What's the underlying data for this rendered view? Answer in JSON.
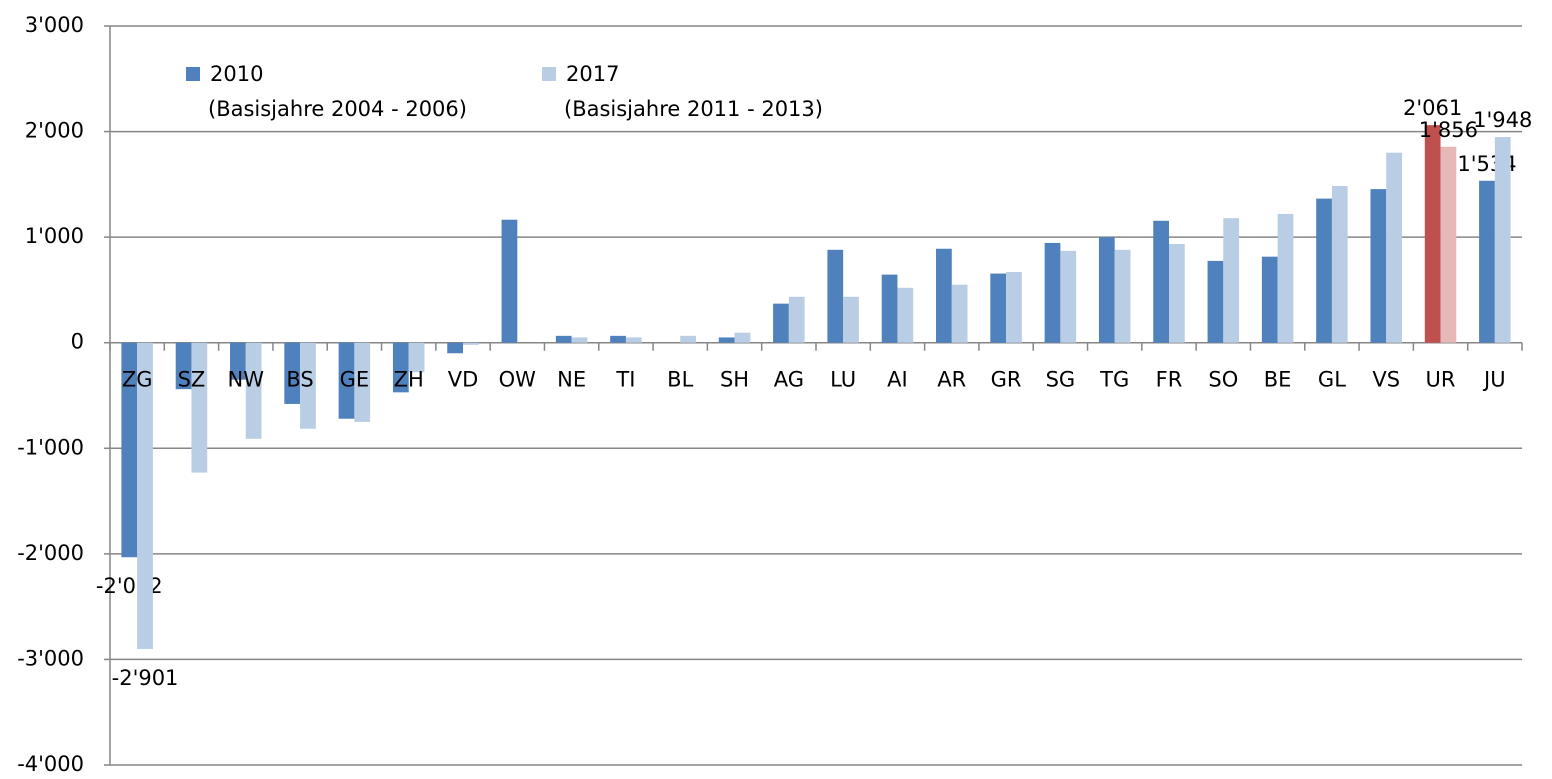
{
  "chart_data": {
    "type": "bar",
    "categories": [
      "ZG",
      "SZ",
      "NW",
      "BS",
      "GE",
      "ZH",
      "VD",
      "OW",
      "NE",
      "TI",
      "BL",
      "SH",
      "AG",
      "LU",
      "AI",
      "AR",
      "GR",
      "SG",
      "TG",
      "FR",
      "SO",
      "BE",
      "GL",
      "VS",
      "UR",
      "JU"
    ],
    "highlight": "UR",
    "series": [
      {
        "name": "2010",
        "description": "(Basisjahre 2004 - 2006)",
        "color": "#4f81bd",
        "highlight_color": "#c0504d",
        "values": [
          -2032,
          -440,
          -350,
          -580,
          -720,
          -470,
          -100,
          1165,
          65,
          65,
          0,
          50,
          370,
          880,
          645,
          890,
          655,
          945,
          1000,
          1155,
          775,
          815,
          1365,
          1455,
          2061,
          1534
        ],
        "value_labels": [
          "-2'032",
          null,
          null,
          null,
          null,
          null,
          null,
          null,
          null,
          null,
          null,
          null,
          null,
          null,
          null,
          null,
          null,
          null,
          null,
          null,
          null,
          null,
          null,
          null,
          "2'061",
          "1'534"
        ]
      },
      {
        "name": "2017",
        "description": "(Basisjahre 2011 - 2013)",
        "color": "#b9cde5",
        "highlight_color": "#e6b9b8",
        "values": [
          -2901,
          -1230,
          -910,
          -815,
          -750,
          -280,
          -20,
          0,
          50,
          50,
          65,
          95,
          435,
          435,
          520,
          550,
          670,
          870,
          880,
          935,
          1180,
          1220,
          1485,
          1800,
          1856,
          1948
        ],
        "value_labels": [
          "-2'901",
          null,
          null,
          null,
          null,
          null,
          null,
          null,
          null,
          null,
          null,
          null,
          null,
          null,
          null,
          null,
          null,
          null,
          null,
          null,
          null,
          null,
          null,
          null,
          "1'856",
          "1'948"
        ]
      }
    ],
    "ylim": [
      -4000,
      3000
    ],
    "yticks": [
      {
        "value": -4000,
        "label": "-4'000"
      },
      {
        "value": -3000,
        "label": "-3'000"
      },
      {
        "value": -2000,
        "label": "-2'000"
      },
      {
        "value": -1000,
        "label": "-1'000"
      },
      0,
      {
        "value": 1000,
        "label": "1'000"
      },
      {
        "value": 2000,
        "label": "2'000"
      },
      {
        "value": 3000,
        "label": "3'000"
      }
    ],
    "grid": true
  }
}
